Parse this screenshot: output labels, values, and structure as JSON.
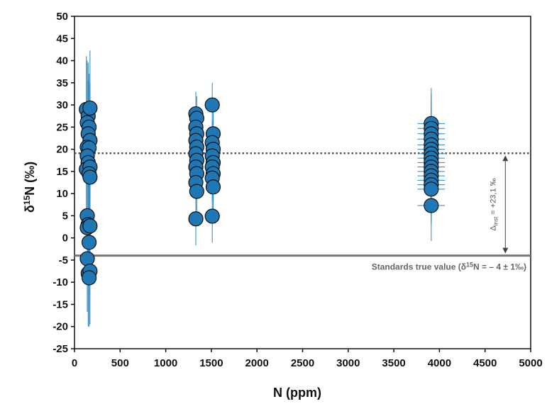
{
  "chart_data": {
    "type": "scatter",
    "xlabel": "N (ppm)",
    "ylabel": "δ15N (‰)",
    "xlim": [
      0,
      5000
    ],
    "ylim": [
      -25,
      50
    ],
    "xticks": [
      "0",
      "500",
      "1000",
      "1500",
      "2000",
      "2500",
      "3000",
      "3500",
      "4000",
      "4500",
      "5000"
    ],
    "yticks": [
      "-25",
      "-20",
      "-15",
      "-10",
      "-5",
      "0",
      "5",
      "10",
      "15",
      "20",
      "25",
      "30",
      "35",
      "40",
      "45",
      "50"
    ],
    "grid": false,
    "colors": {
      "marker": "#1f77b4",
      "error_bar": "#2a86c2",
      "measured_line": "#555555",
      "true_line": "#777777"
    },
    "reference_lines": {
      "measured_mean": {
        "y": 19.1,
        "style": "dotted"
      },
      "true_value": {
        "y": -4,
        "style": "solid",
        "label": "Standards true value (δ15N = – 4 ± 1‰)"
      }
    },
    "annotation": {
      "label": "Δinst = +23,1 ‰",
      "from_y": -4,
      "to_y": 19.1,
      "x": 4800
    },
    "series": [
      {
        "points": [
          {
            "x": 130,
            "y": 29.0,
            "ex": 15,
            "ey": 12
          },
          {
            "x": 150,
            "y": 27.5,
            "ex": 20,
            "ey": 12
          },
          {
            "x": 170,
            "y": 29.3,
            "ex": 20,
            "ey": 13
          },
          {
            "x": 140,
            "y": 26.0,
            "ex": 15,
            "ey": 14
          },
          {
            "x": 160,
            "y": 25.0,
            "ex": 20,
            "ey": 12
          },
          {
            "x": 150,
            "y": 23.5,
            "ex": 20,
            "ey": 12
          },
          {
            "x": 170,
            "y": 22.0,
            "ex": 20,
            "ey": 13
          },
          {
            "x": 140,
            "y": 20.5,
            "ex": 15,
            "ey": 12
          },
          {
            "x": 160,
            "y": 20.3,
            "ex": 20,
            "ey": 14
          },
          {
            "x": 140,
            "y": 18.5,
            "ex": 20,
            "ey": 12
          },
          {
            "x": 150,
            "y": 17.0,
            "ex": 20,
            "ey": 12
          },
          {
            "x": 130,
            "y": 15.5,
            "ex": 20,
            "ey": 12
          },
          {
            "x": 170,
            "y": 16.0,
            "ex": 20,
            "ey": 13
          },
          {
            "x": 160,
            "y": 14.5,
            "ex": 20,
            "ey": 12
          },
          {
            "x": 170,
            "y": 13.7,
            "ex": 20,
            "ey": 12
          },
          {
            "x": 140,
            "y": 5.0,
            "ex": 15,
            "ey": 12
          },
          {
            "x": 150,
            "y": 3.0,
            "ex": 20,
            "ey": 12
          },
          {
            "x": 140,
            "y": 2.3,
            "ex": 20,
            "ey": 12
          },
          {
            "x": 170,
            "y": 2.7,
            "ex": 20,
            "ey": 12
          },
          {
            "x": 160,
            "y": -1.0,
            "ex": 20,
            "ey": 12
          },
          {
            "x": 140,
            "y": -4.7,
            "ex": 20,
            "ey": 12
          },
          {
            "x": 150,
            "y": -8.0,
            "ex": 20,
            "ey": 12
          },
          {
            "x": 170,
            "y": -7.5,
            "ex": 20,
            "ey": 12
          },
          {
            "x": 160,
            "y": -9.0,
            "ex": 20,
            "ey": 11
          },
          {
            "x": 1330,
            "y": 28.0,
            "ex": 70,
            "ey": 5
          },
          {
            "x": 1340,
            "y": 27.0,
            "ex": 70,
            "ey": 5
          },
          {
            "x": 1330,
            "y": 25.0,
            "ex": 70,
            "ey": 5
          },
          {
            "x": 1340,
            "y": 23.5,
            "ex": 70,
            "ey": 5
          },
          {
            "x": 1330,
            "y": 22.0,
            "ex": 70,
            "ey": 5
          },
          {
            "x": 1340,
            "y": 20.5,
            "ex": 70,
            "ey": 5
          },
          {
            "x": 1330,
            "y": 19.0,
            "ex": 70,
            "ey": 5
          },
          {
            "x": 1340,
            "y": 17.5,
            "ex": 70,
            "ey": 5
          },
          {
            "x": 1330,
            "y": 16.0,
            "ex": 70,
            "ey": 5
          },
          {
            "x": 1340,
            "y": 14.5,
            "ex": 70,
            "ey": 5
          },
          {
            "x": 1330,
            "y": 12.5,
            "ex": 70,
            "ey": 5
          },
          {
            "x": 1340,
            "y": 10.5,
            "ex": 70,
            "ey": 5
          },
          {
            "x": 1330,
            "y": 4.3,
            "ex": 70,
            "ey": 6
          },
          {
            "x": 1510,
            "y": 30.0,
            "ex": 80,
            "ey": 5
          },
          {
            "x": 1520,
            "y": 23.5,
            "ex": 80,
            "ey": 5
          },
          {
            "x": 1510,
            "y": 21.5,
            "ex": 80,
            "ey": 5
          },
          {
            "x": 1520,
            "y": 20.0,
            "ex": 80,
            "ey": 5
          },
          {
            "x": 1510,
            "y": 18.5,
            "ex": 80,
            "ey": 5
          },
          {
            "x": 1520,
            "y": 17.0,
            "ex": 80,
            "ey": 5
          },
          {
            "x": 1510,
            "y": 16.0,
            "ex": 80,
            "ey": 5
          },
          {
            "x": 1520,
            "y": 14.5,
            "ex": 80,
            "ey": 5
          },
          {
            "x": 1510,
            "y": 13.5,
            "ex": 80,
            "ey": 5
          },
          {
            "x": 1520,
            "y": 11.5,
            "ex": 80,
            "ey": 5
          },
          {
            "x": 1510,
            "y": 4.9,
            "ex": 80,
            "ey": 6
          },
          {
            "x": 3910,
            "y": 25.8,
            "ex": 150,
            "ey": 8
          },
          {
            "x": 3910,
            "y": 24.7,
            "ex": 150,
            "ey": 8
          },
          {
            "x": 3910,
            "y": 23.5,
            "ex": 150,
            "ey": 8
          },
          {
            "x": 3910,
            "y": 22.3,
            "ex": 150,
            "ey": 8
          },
          {
            "x": 3910,
            "y": 21.0,
            "ex": 150,
            "ey": 8
          },
          {
            "x": 3910,
            "y": 20.0,
            "ex": 150,
            "ey": 8
          },
          {
            "x": 3910,
            "y": 19.0,
            "ex": 150,
            "ey": 8
          },
          {
            "x": 3910,
            "y": 18.0,
            "ex": 150,
            "ey": 8
          },
          {
            "x": 3910,
            "y": 17.0,
            "ex": 150,
            "ey": 8
          },
          {
            "x": 3910,
            "y": 16.0,
            "ex": 150,
            "ey": 8
          },
          {
            "x": 3910,
            "y": 15.0,
            "ex": 150,
            "ey": 8
          },
          {
            "x": 3910,
            "y": 14.0,
            "ex": 150,
            "ey": 8
          },
          {
            "x": 3910,
            "y": 13.0,
            "ex": 150,
            "ey": 8
          },
          {
            "x": 3910,
            "y": 12.0,
            "ex": 150,
            "ey": 8
          },
          {
            "x": 3910,
            "y": 11.0,
            "ex": 150,
            "ey": 8
          },
          {
            "x": 3910,
            "y": 7.3,
            "ex": 150,
            "ey": 8
          }
        ]
      }
    ]
  }
}
